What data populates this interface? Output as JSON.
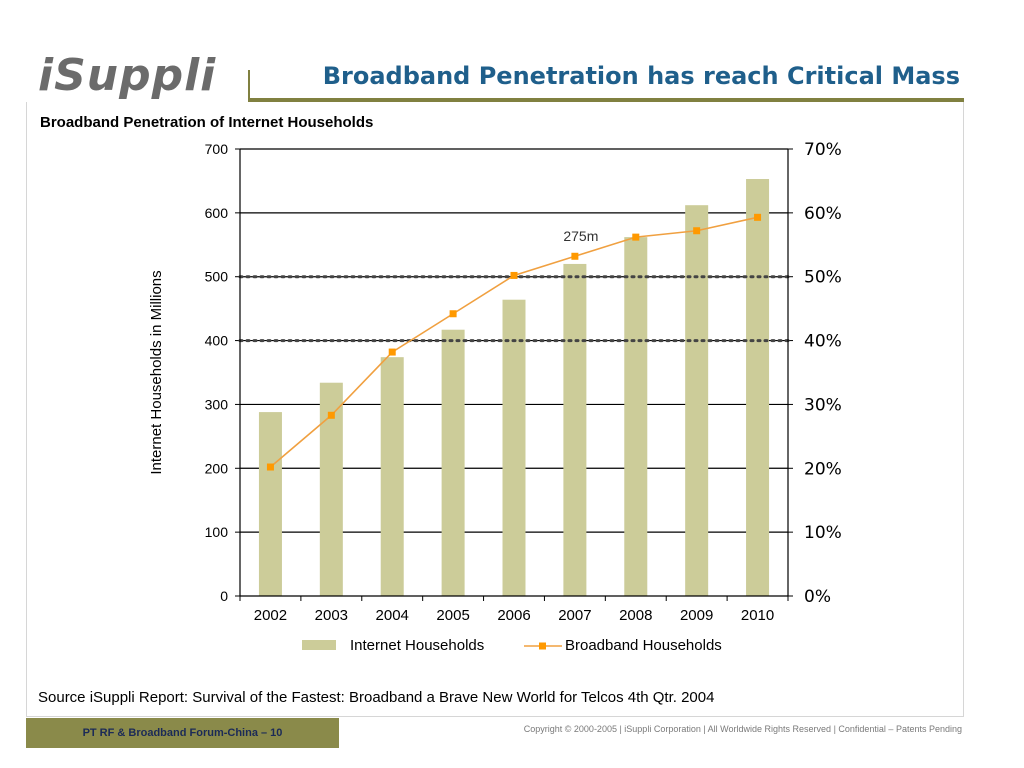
{
  "logo_text": "iSuppli",
  "slide_title": "Broadband Penetration has reach Critical Mass",
  "chart_subtitle": "Broadband Penetration of Internet Households",
  "source": "Source iSuppli Report: Survival of the Fastest: Broadband a Brave New World for Telcos  4th Qtr. 2004",
  "footer_label": "PT RF & Broadband Forum-China – 10",
  "copyright": "Copyright © 2000-2005  |  iSuppli Corporation  |  All Worldwide Rights Reserved  |  Confidential – Patents Pending",
  "colors": {
    "bar": "#cccc99",
    "line": "#f0a040",
    "marker": "#ff9900",
    "title": "#1f5f8b",
    "accent": "#808040"
  },
  "chart_data": {
    "type": "bar",
    "title": "Broadband Penetration of Internet Households",
    "ylabel": "Internet Households in Millions",
    "categories": [
      "2002",
      "2003",
      "2004",
      "2005",
      "2006",
      "2007",
      "2008",
      "2009",
      "2010"
    ],
    "ylim": [
      0,
      700
    ],
    "yticks": [
      "0",
      "100",
      "200",
      "300",
      "400",
      "500",
      "600",
      "700"
    ],
    "y2lim": [
      0,
      70
    ],
    "y2ticks": [
      "0%",
      "10%",
      "20%",
      "30%",
      "40%",
      "50%",
      "60%",
      "70%"
    ],
    "series": [
      {
        "name": "Internet Households",
        "type": "bar",
        "axis": "left",
        "values": [
          288,
          334,
          374,
          417,
          464,
          520,
          562,
          612,
          653
        ]
      },
      {
        "name": "Broadband Households",
        "type": "line",
        "axis": "right",
        "values": [
          20.2,
          28.3,
          38.2,
          44.2,
          50.2,
          53.2,
          56.2,
          57.2,
          59.3
        ]
      }
    ],
    "reference_lines_pct": [
      40,
      50
    ],
    "annotations": [
      {
        "text": "275m",
        "category": "2007"
      }
    ],
    "legend": "bottom",
    "grid": true
  }
}
